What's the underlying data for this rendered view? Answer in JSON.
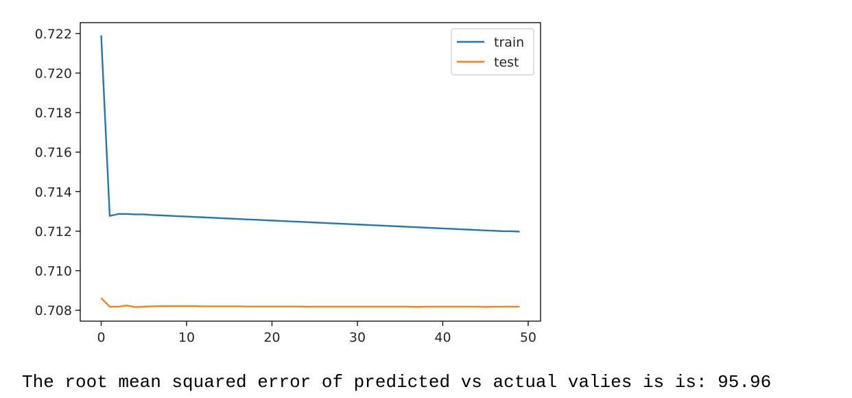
{
  "chart_data": {
    "type": "line",
    "title": "",
    "xlabel": "",
    "ylabel": "",
    "xlim": [
      -2.45,
      51.45
    ],
    "ylim": [
      0.70745,
      0.72255
    ],
    "xticks": [
      0,
      10,
      20,
      30,
      40,
      50
    ],
    "xtick_labels": [
      "0",
      "10",
      "20",
      "30",
      "40",
      "50"
    ],
    "yticks": [
      0.708,
      0.71,
      0.712,
      0.714,
      0.716,
      0.718,
      0.72,
      0.722
    ],
    "ytick_labels": [
      "0.708",
      "0.710",
      "0.712",
      "0.714",
      "0.716",
      "0.718",
      "0.720",
      "0.722"
    ],
    "grid": false,
    "legend": "top-right",
    "series": [
      {
        "name": "train",
        "color": "#1f77b4",
        "x": [
          0,
          1,
          2,
          3,
          4,
          5,
          6,
          7,
          8,
          9,
          10,
          11,
          12,
          13,
          14,
          15,
          16,
          17,
          18,
          19,
          20,
          21,
          22,
          23,
          24,
          25,
          26,
          27,
          28,
          29,
          30,
          31,
          32,
          33,
          34,
          35,
          36,
          37,
          38,
          39,
          40,
          41,
          42,
          43,
          44,
          45,
          46,
          47,
          48,
          49
        ],
        "values": [
          0.7219,
          0.71277,
          0.71287,
          0.71287,
          0.71285,
          0.71285,
          0.71282,
          0.7128,
          0.71278,
          0.71276,
          0.71274,
          0.71272,
          0.7127,
          0.71268,
          0.71266,
          0.71264,
          0.71262,
          0.7126,
          0.71258,
          0.71256,
          0.71254,
          0.71252,
          0.7125,
          0.71248,
          0.71246,
          0.71244,
          0.71242,
          0.7124,
          0.71238,
          0.71236,
          0.71234,
          0.71232,
          0.7123,
          0.71228,
          0.71226,
          0.71224,
          0.71222,
          0.7122,
          0.71218,
          0.71216,
          0.71214,
          0.71212,
          0.7121,
          0.71208,
          0.71206,
          0.71204,
          0.71202,
          0.712,
          0.712,
          0.71198
        ]
      },
      {
        "name": "test",
        "color": "#ff7f0e",
        "x": [
          0,
          1,
          2,
          3,
          4,
          5,
          6,
          7,
          8,
          9,
          10,
          11,
          12,
          13,
          14,
          15,
          16,
          17,
          18,
          19,
          20,
          21,
          22,
          23,
          24,
          25,
          26,
          27,
          28,
          29,
          30,
          31,
          32,
          33,
          34,
          35,
          36,
          37,
          38,
          39,
          40,
          41,
          42,
          43,
          44,
          45,
          46,
          47,
          48,
          49
        ],
        "values": [
          0.70862,
          0.70818,
          0.70818,
          0.70824,
          0.70816,
          0.70818,
          0.7082,
          0.70821,
          0.70821,
          0.70821,
          0.70821,
          0.70821,
          0.7082,
          0.7082,
          0.7082,
          0.7082,
          0.7082,
          0.70819,
          0.70819,
          0.70819,
          0.70819,
          0.70819,
          0.70819,
          0.70819,
          0.70818,
          0.70818,
          0.70818,
          0.70818,
          0.70818,
          0.70818,
          0.70818,
          0.70818,
          0.70818,
          0.70818,
          0.70818,
          0.70818,
          0.70818,
          0.70817,
          0.70818,
          0.70818,
          0.70818,
          0.70818,
          0.70818,
          0.70818,
          0.70818,
          0.70817,
          0.70818,
          0.70818,
          0.70818,
          0.70818
        ]
      }
    ]
  },
  "output": {
    "text": "The root mean squared error of predicted vs actual valies is is: 95.96"
  }
}
